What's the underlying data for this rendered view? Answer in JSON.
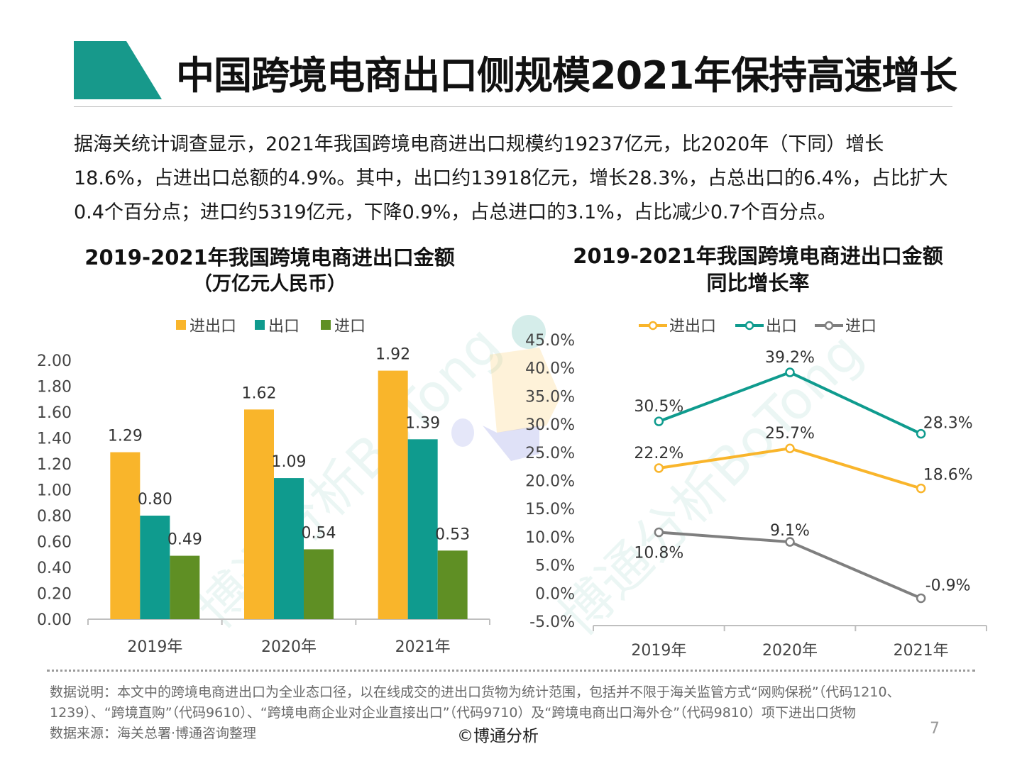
{
  "title": "中国跨境电商出口侧规模2021年保持高速增长",
  "intro": "据海关统计调查显示，2021年我国跨境电商进出口规模约19237亿元，比2020年（下同）增长18.6%，占进出口总额的4.9%。其中，出口约13918亿元，增长28.3%，占总出口的6.4%，占比扩大0.4个百分点；进口约5319亿元，下降0.9%，占总进口的3.1%，占比减少0.7个百分点。",
  "colors": {
    "accent": "#17998b",
    "total": "#f9b52b",
    "export": "#0f9b8e",
    "import": "#5f8f24",
    "import_line": "#7f7f7f"
  },
  "watermark": "博通分析BoTong",
  "chart_data": [
    {
      "type": "bar",
      "title": "2019-2021年我国跨境电商进出口金额",
      "subtitle": "（万亿元人民币）",
      "categories": [
        "2019年",
        "2020年",
        "2021年"
      ],
      "series": [
        {
          "name": "进出口",
          "values": [
            1.29,
            1.62,
            1.92
          ]
        },
        {
          "name": "出口",
          "values": [
            0.8,
            1.09,
            1.39
          ]
        },
        {
          "name": "进口",
          "values": [
            0.49,
            0.54,
            0.53
          ]
        }
      ],
      "ylim": [
        0,
        2.0
      ],
      "yticks": [
        "0.00",
        "0.20",
        "0.40",
        "0.60",
        "0.80",
        "1.00",
        "1.20",
        "1.40",
        "1.60",
        "1.80",
        "2.00"
      ],
      "legend": "top"
    },
    {
      "type": "line",
      "title": "2019-2021年我国跨境电商进出口金额",
      "subtitle": "同比增长率",
      "categories": [
        "2019年",
        "2020年",
        "2021年"
      ],
      "series": [
        {
          "name": "进出口",
          "values": [
            22.2,
            25.7,
            18.6
          ],
          "labels": [
            "22.2%",
            "25.7%",
            "18.6%"
          ]
        },
        {
          "name": "出口",
          "values": [
            30.5,
            39.2,
            28.3
          ],
          "labels": [
            "30.5%",
            "39.2%",
            "28.3%"
          ]
        },
        {
          "name": "进口",
          "values": [
            10.8,
            9.1,
            -0.9
          ],
          "labels": [
            "10.8%",
            "9.1%",
            "-0.9%"
          ]
        }
      ],
      "ylim": [
        -5,
        45
      ],
      "yticks": [
        "-5.0%",
        "0.0%",
        "5.0%",
        "10.0%",
        "15.0%",
        "20.0%",
        "25.0%",
        "30.0%",
        "35.0%",
        "40.0%",
        "45.0%"
      ],
      "legend": "top"
    }
  ],
  "footer": {
    "note_line1": "数据说明：本文中的跨境电商进出口为全业态口径，以在线成交的进出口货物为统计范围，包括并不限于海关监管方式“网购保税”（代码1210、",
    "note_line2": "1239）、“跨境直购”（代码9610）、“跨境电商企业对企业直接出口”（代码9710）及“跨境电商出口海外仓”（代码9810）项下进出口货物",
    "note_line3": "数据来源：海关总署·博通咨询整理",
    "copyright": "©博通分析",
    "page": "7"
  }
}
